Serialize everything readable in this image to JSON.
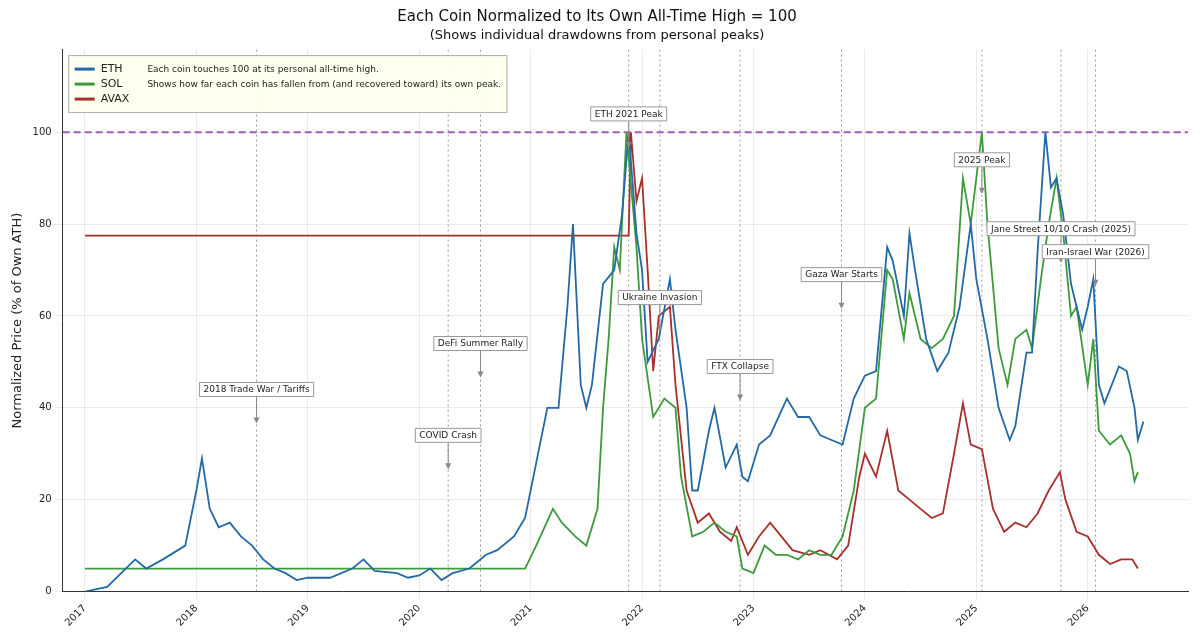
{
  "chart_data": {
    "type": "line",
    "title": "Each Coin Normalized to Its Own All-Time High = 100",
    "subtitle": "(Shows individual drawdowns from personal peaks)",
    "y_label": "Normalized Price (% of Own ATH)",
    "xlim": [
      2016.8,
      2026.9
    ],
    "xticks": [
      2017,
      2018,
      2019,
      2020,
      2021,
      2022,
      2023,
      2024,
      2025,
      2026
    ],
    "ylim": [
      0,
      118
    ],
    "yticks": [
      0,
      20,
      40,
      60,
      80,
      100
    ],
    "grid": true,
    "legend": "upper left",
    "note": [
      "Each coin touches 100 at its personal all-time high.",
      "Shows how far each coin has fallen from (and recovered toward) its own peak."
    ],
    "reference_line": {
      "value": 100,
      "color": "#a05cc0",
      "line_style": "dashed"
    },
    "annotations": [
      {
        "text": "2018 Trade War / Tariffs",
        "x": 2018.54,
        "y": 44
      },
      {
        "text": "COVID Crash",
        "x": 2020.26,
        "y": 34
      },
      {
        "text": "DeFi Summer Rally",
        "x": 2020.55,
        "y": 54
      },
      {
        "text": "ETH 2021 Peak",
        "x": 2021.88,
        "y": 104
      },
      {
        "text": "Ukraine Invasion",
        "x": 2022.16,
        "y": 64
      },
      {
        "text": "FTX Collapse",
        "x": 2022.88,
        "y": 49
      },
      {
        "text": "Gaza War Starts",
        "x": 2023.79,
        "y": 69
      },
      {
        "text": "2025 Peak",
        "x": 2025.05,
        "y": 94
      },
      {
        "text": "Jane Street 10/10 Crash (2025)",
        "x": 2025.76,
        "y": 79
      },
      {
        "text": "Iran-Israel War (2026)",
        "x": 2026.07,
        "y": 74
      }
    ],
    "series": [
      {
        "name": "ETH",
        "color": "#2369a6",
        "line_style": "solid",
        "x": [
          2017.0,
          2017.2,
          2017.45,
          2017.55,
          2017.7,
          2017.9,
          2018.0,
          2018.05,
          2018.12,
          2018.2,
          2018.3,
          2018.4,
          2018.5,
          2018.6,
          2018.7,
          2018.8,
          2018.9,
          2019.0,
          2019.2,
          2019.4,
          2019.5,
          2019.6,
          2019.8,
          2019.9,
          2020.0,
          2020.1,
          2020.2,
          2020.3,
          2020.45,
          2020.6,
          2020.7,
          2020.85,
          2020.95,
          2021.05,
          2021.15,
          2021.25,
          2021.33,
          2021.38,
          2021.45,
          2021.5,
          2021.55,
          2021.65,
          2021.75,
          2021.82,
          2021.88,
          2021.95,
          2022.0,
          2022.05,
          2022.15,
          2022.25,
          2022.3,
          2022.4,
          2022.45,
          2022.5,
          2022.6,
          2022.65,
          2022.75,
          2022.85,
          2022.9,
          2022.95,
          2023.05,
          2023.15,
          2023.3,
          2023.4,
          2023.5,
          2023.6,
          2023.7,
          2023.8,
          2023.9,
          2024.0,
          2024.1,
          2024.2,
          2024.25,
          2024.35,
          2024.4,
          2024.45,
          2024.55,
          2024.65,
          2024.75,
          2024.85,
          2024.95,
          2025.0,
          2025.1,
          2025.2,
          2025.3,
          2025.35,
          2025.45,
          2025.5,
          2025.55,
          2025.62,
          2025.67,
          2025.72,
          2025.78,
          2025.85,
          2025.9,
          2025.95,
          2026.0,
          2026.05,
          2026.1,
          2026.15,
          2026.2,
          2026.28,
          2026.35,
          2026.42,
          2026.45,
          2026.5
        ],
        "values": [
          0,
          1,
          7,
          5,
          7,
          10,
          22,
          29,
          18,
          14,
          15,
          12,
          10,
          7,
          5,
          4,
          2.5,
          3,
          3,
          5,
          7,
          4.5,
          4,
          3,
          3.5,
          5,
          2.5,
          4,
          5,
          8,
          9,
          12,
          16,
          28,
          40,
          40,
          62,
          80,
          45,
          40,
          45,
          67,
          70,
          82,
          100,
          78,
          70,
          50,
          55,
          68,
          57,
          40,
          22,
          22,
          35,
          40,
          27,
          32,
          25,
          24,
          32,
          34,
          42,
          38,
          38,
          34,
          33,
          32,
          42,
          47,
          48,
          75,
          72,
          60,
          78,
          70,
          55,
          48,
          52,
          62,
          80,
          68,
          55,
          40,
          33,
          36,
          52,
          52,
          74,
          100,
          88,
          90,
          82,
          67,
          62,
          57,
          62,
          68,
          45,
          41,
          44,
          49,
          48,
          40,
          33,
          37
        ]
      },
      {
        "name": "SOL",
        "color": "#3c9a3c",
        "line_style": "solid",
        "x": [
          2017.0,
          2020.95,
          2021.05,
          2021.2,
          2021.28,
          2021.4,
          2021.5,
          2021.6,
          2021.65,
          2021.7,
          2021.75,
          2021.8,
          2021.86,
          2021.95,
          2022.0,
          2022.1,
          2022.2,
          2022.3,
          2022.35,
          2022.45,
          2022.55,
          2022.65,
          2022.75,
          2022.85,
          2022.9,
          2023.0,
          2023.1,
          2023.2,
          2023.3,
          2023.4,
          2023.5,
          2023.6,
          2023.7,
          2023.8,
          2023.9,
          2024.0,
          2024.1,
          2024.2,
          2024.25,
          2024.35,
          2024.4,
          2024.5,
          2024.6,
          2024.7,
          2024.8,
          2024.88,
          2024.95,
          2025.05,
          2025.1,
          2025.2,
          2025.28,
          2025.35,
          2025.45,
          2025.5,
          2025.58,
          2025.65,
          2025.72,
          2025.78,
          2025.85,
          2025.9,
          2026.0,
          2026.05,
          2026.1,
          2026.2,
          2026.3,
          2026.38,
          2026.42,
          2026.45
        ],
        "values": [
          5,
          5,
          10,
          18,
          15,
          12,
          10,
          18,
          40,
          55,
          75,
          70,
          100,
          75,
          55,
          38,
          42,
          40,
          25,
          12,
          13,
          15,
          13,
          12,
          5,
          4,
          10,
          8,
          8,
          7,
          9,
          8,
          8,
          12,
          22,
          40,
          42,
          70,
          68,
          55,
          65,
          55,
          53,
          55,
          60,
          90,
          80,
          100,
          80,
          53,
          45,
          55,
          57,
          53,
          68,
          80,
          90,
          78,
          60,
          62,
          45,
          55,
          35,
          32,
          34,
          30,
          24,
          26
        ]
      },
      {
        "name": "AVAX",
        "color": "#a8302c",
        "line_style": "solid",
        "x": [
          2017.0,
          2021.88,
          2021.9,
          2021.95,
          2022.0,
          2022.05,
          2022.1,
          2022.15,
          2022.25,
          2022.3,
          2022.4,
          2022.5,
          2022.6,
          2022.7,
          2022.8,
          2022.85,
          2022.95,
          2023.05,
          2023.15,
          2023.25,
          2023.35,
          2023.5,
          2023.6,
          2023.75,
          2023.85,
          2023.95,
          2024.0,
          2024.1,
          2024.2,
          2024.3,
          2024.4,
          2024.5,
          2024.6,
          2024.7,
          2024.8,
          2024.88,
          2024.95,
          2025.05,
          2025.15,
          2025.25,
          2025.35,
          2025.45,
          2025.55,
          2025.65,
          2025.75,
          2025.8,
          2025.9,
          2026.0,
          2026.1,
          2026.2,
          2026.3,
          2026.4,
          2026.45
        ],
        "values": [
          77.5,
          77.5,
          100,
          85,
          90,
          70,
          48,
          60,
          62,
          45,
          22,
          15,
          17,
          13,
          11,
          14,
          8,
          12,
          15,
          12,
          9,
          8,
          9,
          7,
          10,
          25,
          30,
          25,
          35,
          22,
          20,
          18,
          16,
          17,
          30,
          41,
          32,
          31,
          18,
          13,
          15,
          14,
          17,
          22,
          26,
          20,
          13,
          12,
          8,
          6,
          7,
          7,
          5
        ]
      }
    ]
  }
}
